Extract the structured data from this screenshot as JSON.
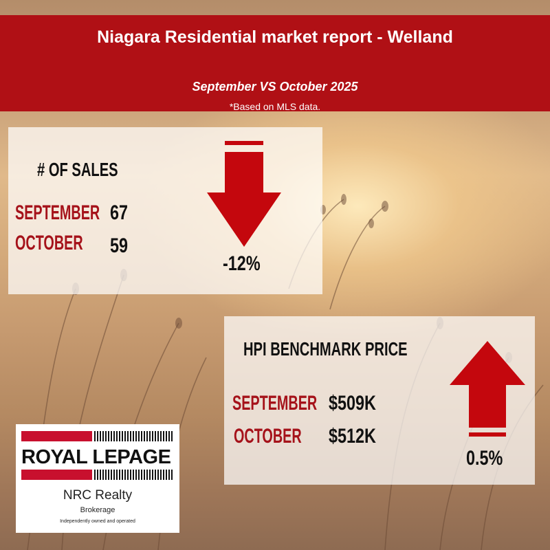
{
  "header": {
    "title": "Niagara Residential market report - Welland",
    "subtitle": "September VS October 2025",
    "note": "*Based on MLS data."
  },
  "sales": {
    "heading": "# OF SALES",
    "rows": [
      {
        "month": "SEPTEMBER",
        "value": "67"
      },
      {
        "month": "OCTOBER",
        "value": "59"
      }
    ],
    "change": "-12%",
    "direction": "down"
  },
  "hpi": {
    "heading": "HPI BENCHMARK PRICE",
    "rows": [
      {
        "month": "SEPTEMBER",
        "value": "$509K"
      },
      {
        "month": "OCTOBER",
        "value": "$512K"
      }
    ],
    "change": "0.5%",
    "direction": "up"
  },
  "logo": {
    "brand": "ROYAL LEPAGE",
    "office": "NRC Realty",
    "brokerage": "Brokerage",
    "tagline": "Independently owned and operated"
  },
  "colors": {
    "header_red": "#b01015",
    "accent_red": "#a5121a",
    "arrow_red": "#c4070d"
  }
}
